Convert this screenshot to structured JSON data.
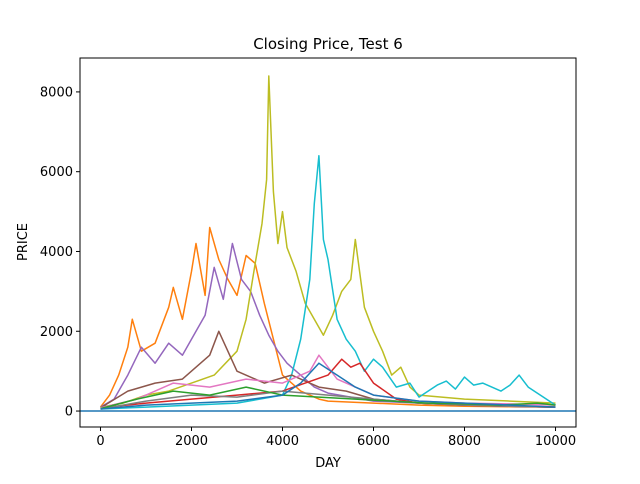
{
  "colors": {
    "background": "#ffffff",
    "axes": "#000000",
    "baseline": "#1f77b4"
  },
  "chart_data": {
    "type": "line",
    "title": "Closing Price, Test 6",
    "xlabel": "DAY",
    "ylabel": "PRICE",
    "xlim": [
      -450,
      10450
    ],
    "ylim": [
      -400,
      8850
    ],
    "xticks": [
      0,
      2000,
      4000,
      6000,
      8000,
      10000
    ],
    "xtick_labels": [
      "0",
      "2000",
      "4000",
      "6000",
      "8000",
      "10000"
    ],
    "yticks": [
      0,
      2000,
      4000,
      6000,
      8000
    ],
    "ytick_labels": [
      "0",
      "2000",
      "4000",
      "6000",
      "8000"
    ],
    "grid": false,
    "legend": "none",
    "horizontal_line": {
      "y": 0,
      "color": "#1f77b4"
    },
    "series": [
      {
        "color": "#ff7f0e",
        "x": [
          0,
          200,
          400,
          600,
          700,
          900,
          1200,
          1500,
          1600,
          1800,
          2000,
          2100,
          2300,
          2400,
          2600,
          2800,
          3000,
          3200,
          3400,
          3600,
          3800,
          4000,
          4200,
          4400,
          4600,
          4800,
          5000,
          6000,
          7000,
          8000,
          9000,
          10000
        ],
        "y": [
          100,
          400,
          900,
          1600,
          2300,
          1500,
          1700,
          2600,
          3100,
          2300,
          3500,
          4200,
          2900,
          4600,
          3800,
          3300,
          2900,
          3900,
          3700,
          2700,
          1800,
          900,
          700,
          500,
          400,
          300,
          250,
          200,
          150,
          120,
          110,
          100
        ]
      },
      {
        "color": "#9467bd",
        "x": [
          0,
          300,
          600,
          900,
          1200,
          1500,
          1800,
          2100,
          2300,
          2500,
          2700,
          2900,
          3100,
          3300,
          3500,
          3700,
          3900,
          4100,
          4300,
          4500,
          4700,
          5000,
          5500,
          6000,
          7000,
          8000,
          9000,
          10000
        ],
        "y": [
          100,
          300,
          900,
          1600,
          1200,
          1700,
          1400,
          2000,
          2400,
          3600,
          2800,
          4200,
          3300,
          3000,
          2400,
          1900,
          1500,
          1200,
          1000,
          800,
          600,
          450,
          350,
          250,
          200,
          150,
          120,
          100
        ]
      },
      {
        "color": "#bcbd22",
        "x": [
          0,
          500,
          1000,
          1500,
          2000,
          2500,
          3000,
          3200,
          3400,
          3550,
          3650,
          3700,
          3800,
          3900,
          4000,
          4100,
          4300,
          4500,
          4700,
          4900,
          5100,
          5300,
          5500,
          5600,
          5800,
          6000,
          6200,
          6400,
          6600,
          6800,
          7000,
          8000,
          9000,
          10000
        ],
        "y": [
          100,
          200,
          400,
          500,
          700,
          900,
          1500,
          2300,
          3700,
          4700,
          5800,
          8400,
          5500,
          4200,
          5000,
          4100,
          3500,
          2700,
          2300,
          1900,
          2400,
          3000,
          3300,
          4300,
          2600,
          2000,
          1500,
          900,
          1100,
          600,
          400,
          300,
          250,
          200
        ]
      },
      {
        "color": "#17becf",
        "x": [
          0,
          1000,
          2000,
          3000,
          4000,
          4200,
          4400,
          4600,
          4700,
          4800,
          4900,
          5000,
          5200,
          5400,
          5600,
          5800,
          6000,
          6200,
          6500,
          6800,
          7000,
          7200,
          7400,
          7600,
          7800,
          8000,
          8200,
          8400,
          8600,
          8800,
          9000,
          9200,
          9400,
          9600,
          9800,
          10000
        ],
        "y": [
          50,
          100,
          150,
          200,
          400,
          900,
          1800,
          3300,
          5200,
          6400,
          4300,
          3800,
          2300,
          1800,
          1500,
          1000,
          1300,
          1100,
          600,
          700,
          350,
          500,
          650,
          750,
          550,
          850,
          650,
          700,
          600,
          500,
          650,
          900,
          600,
          450,
          300,
          150
        ]
      },
      {
        "color": "#8c564b",
        "x": [
          0,
          600,
          1200,
          1800,
          2400,
          2600,
          3000,
          3600,
          4200,
          4800,
          5400,
          6000,
          7000,
          8000,
          9000,
          10000
        ],
        "y": [
          80,
          500,
          700,
          800,
          1400,
          2000,
          1000,
          700,
          900,
          600,
          500,
          300,
          200,
          150,
          120,
          100
        ]
      },
      {
        "color": "#d62728",
        "x": [
          0,
          1000,
          2000,
          3000,
          4000,
          4500,
          5000,
          5300,
          5500,
          5700,
          6000,
          6500,
          7000,
          8000,
          9000,
          10000
        ],
        "y": [
          80,
          200,
          300,
          400,
          500,
          700,
          900,
          1300,
          1100,
          1200,
          700,
          300,
          200,
          150,
          120,
          100
        ]
      },
      {
        "color": "#e377c2",
        "x": [
          0,
          800,
          1600,
          2400,
          3200,
          4000,
          4600,
          4800,
          5200,
          5600,
          6000,
          7000,
          8000,
          9000,
          10000
        ],
        "y": [
          80,
          300,
          700,
          600,
          800,
          700,
          1000,
          1400,
          800,
          600,
          400,
          250,
          200,
          180,
          150
        ]
      },
      {
        "color": "#7f7f7f",
        "x": [
          0,
          1000,
          2000,
          3000,
          4000,
          5000,
          6000,
          7000,
          8000,
          9000,
          10000
        ],
        "y": [
          50,
          250,
          400,
          350,
          500,
          400,
          300,
          200,
          150,
          120,
          100
        ]
      },
      {
        "color": "#2ca02c",
        "x": [
          0,
          800,
          1600,
          2400,
          3200,
          4000,
          4800,
          5600,
          6400,
          7200,
          8000,
          8800,
          9600,
          10000
        ],
        "y": [
          60,
          300,
          500,
          400,
          600,
          400,
          350,
          300,
          250,
          200,
          180,
          150,
          200,
          150
        ]
      },
      {
        "color": "#1f77b4",
        "x": [
          0,
          1000,
          2000,
          3000,
          4000,
          4400,
          4800,
          5200,
          5600,
          6000,
          7000,
          8000,
          9000,
          10000
        ],
        "y": [
          50,
          150,
          200,
          250,
          400,
          700,
          1200,
          900,
          600,
          400,
          250,
          200,
          150,
          100
        ]
      }
    ]
  }
}
